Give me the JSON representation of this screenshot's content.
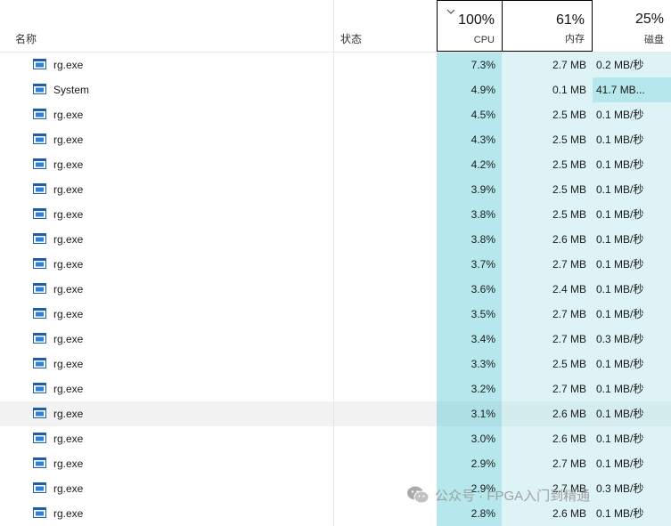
{
  "header": {
    "name_label": "名称",
    "status_label": "状态",
    "cpu": {
      "percent": "100%",
      "label": "CPU"
    },
    "memory": {
      "percent": "61%",
      "label": "内存"
    },
    "disk": {
      "percent": "25%",
      "label": "磁盘"
    }
  },
  "colors": {
    "cpu_heat": "#b5e7ec",
    "light_heat": "#ddf3f5",
    "sort_border": "#000000"
  },
  "processes": [
    {
      "name": "rg.exe",
      "cpu": "7.3%",
      "memory": "2.7 MB",
      "disk": "0.2 MB/秒"
    },
    {
      "name": "System",
      "cpu": "4.9%",
      "memory": "0.1 MB",
      "disk": "41.7 MB...",
      "disk_highlight": true
    },
    {
      "name": "rg.exe",
      "cpu": "4.5%",
      "memory": "2.5 MB",
      "disk": "0.1 MB/秒"
    },
    {
      "name": "rg.exe",
      "cpu": "4.3%",
      "memory": "2.5 MB",
      "disk": "0.1 MB/秒"
    },
    {
      "name": "rg.exe",
      "cpu": "4.2%",
      "memory": "2.5 MB",
      "disk": "0.1 MB/秒"
    },
    {
      "name": "rg.exe",
      "cpu": "3.9%",
      "memory": "2.5 MB",
      "disk": "0.1 MB/秒"
    },
    {
      "name": "rg.exe",
      "cpu": "3.8%",
      "memory": "2.5 MB",
      "disk": "0.1 MB/秒"
    },
    {
      "name": "rg.exe",
      "cpu": "3.8%",
      "memory": "2.6 MB",
      "disk": "0.1 MB/秒"
    },
    {
      "name": "rg.exe",
      "cpu": "3.7%",
      "memory": "2.7 MB",
      "disk": "0.1 MB/秒"
    },
    {
      "name": "rg.exe",
      "cpu": "3.6%",
      "memory": "2.4 MB",
      "disk": "0.1 MB/秒"
    },
    {
      "name": "rg.exe",
      "cpu": "3.5%",
      "memory": "2.7 MB",
      "disk": "0.1 MB/秒"
    },
    {
      "name": "rg.exe",
      "cpu": "3.4%",
      "memory": "2.7 MB",
      "disk": "0.3 MB/秒"
    },
    {
      "name": "rg.exe",
      "cpu": "3.3%",
      "memory": "2.5 MB",
      "disk": "0.1 MB/秒"
    },
    {
      "name": "rg.exe",
      "cpu": "3.2%",
      "memory": "2.7 MB",
      "disk": "0.1 MB/秒"
    },
    {
      "name": "rg.exe",
      "cpu": "3.1%",
      "memory": "2.6 MB",
      "disk": "0.1 MB/秒",
      "hover": true
    },
    {
      "name": "rg.exe",
      "cpu": "3.0%",
      "memory": "2.6 MB",
      "disk": "0.1 MB/秒"
    },
    {
      "name": "rg.exe",
      "cpu": "2.9%",
      "memory": "2.7 MB",
      "disk": "0.1 MB/秒"
    },
    {
      "name": "rg.exe",
      "cpu": "2.9%",
      "memory": "2.7 MB",
      "disk": "0.3 MB/秒"
    },
    {
      "name": "rg.exe",
      "cpu": "2.8%",
      "memory": "2.6 MB",
      "disk": "0.1 MB/秒"
    }
  ],
  "process_icon": "app-window-icon",
  "watermark": {
    "icon": "wechat-icon",
    "text": "公众号 · FPGA入门到精通"
  }
}
